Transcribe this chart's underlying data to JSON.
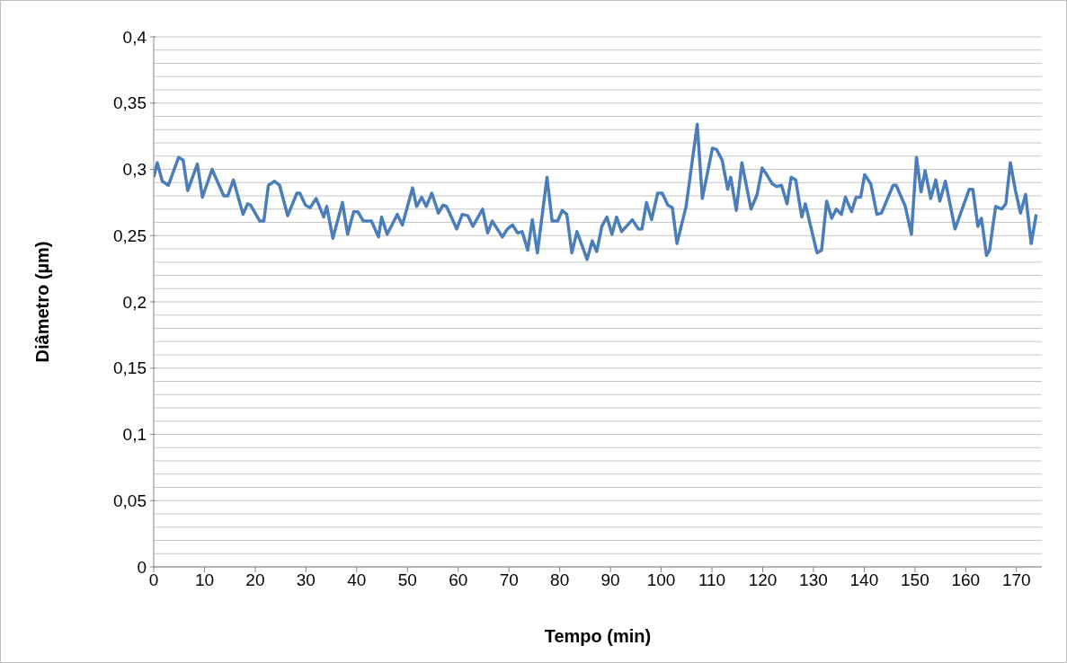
{
  "chart_data": {
    "type": "line",
    "xlabel": "Tempo (min)",
    "ylabel": "Diâmetro (µm)",
    "xlim": [
      0,
      175
    ],
    "xticks": [
      0,
      10,
      20,
      30,
      40,
      50,
      60,
      70,
      80,
      90,
      100,
      110,
      120,
      130,
      140,
      150,
      160,
      170
    ],
    "ylim": [
      0,
      0.4
    ],
    "yticks": [
      {
        "value": 0,
        "label": "0"
      },
      {
        "value": 0.01,
        "label": null
      },
      {
        "value": 0.02,
        "label": null
      },
      {
        "value": 0.03,
        "label": null
      },
      {
        "value": 0.04,
        "label": null
      },
      {
        "value": 0.05,
        "label": "0,05"
      },
      {
        "value": 0.06,
        "label": null
      },
      {
        "value": 0.07,
        "label": null
      },
      {
        "value": 0.08,
        "label": null
      },
      {
        "value": 0.09,
        "label": null
      },
      {
        "value": 0.1,
        "label": "0,1"
      },
      {
        "value": 0.11,
        "label": null
      },
      {
        "value": 0.12,
        "label": null
      },
      {
        "value": 0.13,
        "label": null
      },
      {
        "value": 0.14,
        "label": null
      },
      {
        "value": 0.15,
        "label": "0,15"
      },
      {
        "value": 0.16,
        "label": null
      },
      {
        "value": 0.17,
        "label": null
      },
      {
        "value": 0.18,
        "label": null
      },
      {
        "value": 0.19,
        "label": null
      },
      {
        "value": 0.2,
        "label": "0,2"
      },
      {
        "value": 0.21,
        "label": null
      },
      {
        "value": 0.22,
        "label": null
      },
      {
        "value": 0.23,
        "label": null
      },
      {
        "value": 0.24,
        "label": null
      },
      {
        "value": 0.25,
        "label": "0,25"
      },
      {
        "value": 0.26,
        "label": null
      },
      {
        "value": 0.27,
        "label": null
      },
      {
        "value": 0.28,
        "label": null
      },
      {
        "value": 0.29,
        "label": null
      },
      {
        "value": 0.3,
        "label": "0,3"
      },
      {
        "value": 0.31,
        "label": null
      },
      {
        "value": 0.32,
        "label": null
      },
      {
        "value": 0.33,
        "label": null
      },
      {
        "value": 0.34,
        "label": null
      },
      {
        "value": 0.35,
        "label": "0,35"
      },
      {
        "value": 0.36,
        "label": null
      },
      {
        "value": 0.37,
        "label": null
      },
      {
        "value": 0.38,
        "label": null
      },
      {
        "value": 0.39,
        "label": null
      },
      {
        "value": 0.4,
        "label": "0,4"
      }
    ],
    "grid": "y",
    "legend": false,
    "marker": "none",
    "line_style": "solid",
    "series": [
      {
        "color": "#4a7ebb",
        "x": [
          0,
          0.7,
          1.7,
          2.9,
          4.9,
          5.8,
          6.7,
          8.6,
          9.6,
          11.5,
          13.8,
          14.6,
          15.7,
          17.6,
          18.5,
          19.1,
          20.9,
          21.7,
          22.6,
          23.8,
          24.8,
          26.4,
          28.2,
          28.8,
          29.9,
          30.8,
          32.0,
          33.5,
          34.1,
          35.3,
          37.2,
          38.2,
          39.4,
          40.2,
          41.3,
          42.9,
          44.3,
          44.9,
          46.0,
          48.0,
          49.0,
          51.0,
          51.8,
          52.8,
          53.7,
          54.8,
          56.1,
          57.0,
          57.7,
          59.7,
          60.8,
          61.9,
          62.9,
          64.8,
          65.8,
          66.7,
          68.7,
          69.7,
          70.7,
          71.7,
          72.6,
          73.7,
          74.6,
          75.6,
          77.5,
          78.5,
          79.6,
          80.5,
          81.4,
          82.4,
          83.4,
          85.4,
          86.4,
          87.3,
          88.3,
          89.3,
          90.3,
          91.2,
          92.2,
          94.3,
          95.5,
          96.2,
          97.1,
          98.1,
          99.3,
          100.2,
          101.3,
          102.2,
          103.1,
          104.9,
          107.1,
          108.1,
          110.1,
          110.9,
          112.0,
          113.1,
          113.7,
          114.8,
          115.9,
          117.7,
          118.9,
          119.9,
          120.8,
          121.9,
          122.8,
          123.7,
          124.8,
          125.6,
          126.5,
          127.7,
          128.4,
          130.7,
          131.6,
          132.6,
          133.6,
          134.5,
          135.5,
          136.3,
          137.5,
          138.4,
          139.3,
          140.1,
          141.3,
          142.5,
          143.4,
          145.7,
          146.3,
          148.1,
          149.3,
          150.3,
          151.2,
          152.0,
          153.1,
          154.1,
          154.9,
          156.0,
          157.9,
          160.7,
          161.4,
          162.4,
          163.1,
          164.1,
          164.7,
          165.9,
          167.1,
          167.9,
          168.8,
          169.8,
          170.8,
          171.8,
          172.9,
          173.9
        ],
        "values": [
          0.294,
          0.305,
          0.291,
          0.288,
          0.309,
          0.307,
          0.284,
          0.304,
          0.279,
          0.3,
          0.28,
          0.28,
          0.292,
          0.266,
          0.274,
          0.273,
          0.261,
          0.261,
          0.288,
          0.291,
          0.288,
          0.265,
          0.282,
          0.282,
          0.273,
          0.271,
          0.278,
          0.264,
          0.272,
          0.248,
          0.275,
          0.251,
          0.268,
          0.268,
          0.261,
          0.261,
          0.249,
          0.264,
          0.251,
          0.266,
          0.258,
          0.286,
          0.272,
          0.279,
          0.272,
          0.282,
          0.267,
          0.273,
          0.272,
          0.255,
          0.266,
          0.265,
          0.257,
          0.27,
          0.252,
          0.261,
          0.249,
          0.255,
          0.258,
          0.252,
          0.253,
          0.239,
          0.262,
          0.237,
          0.294,
          0.261,
          0.261,
          0.269,
          0.266,
          0.237,
          0.253,
          0.232,
          0.246,
          0.238,
          0.257,
          0.264,
          0.251,
          0.264,
          0.253,
          0.262,
          0.255,
          0.255,
          0.275,
          0.262,
          0.282,
          0.282,
          0.273,
          0.271,
          0.244,
          0.272,
          0.334,
          0.278,
          0.316,
          0.315,
          0.307,
          0.285,
          0.294,
          0.269,
          0.305,
          0.27,
          0.281,
          0.301,
          0.296,
          0.289,
          0.287,
          0.288,
          0.274,
          0.294,
          0.292,
          0.264,
          0.274,
          0.237,
          0.239,
          0.276,
          0.263,
          0.27,
          0.266,
          0.279,
          0.268,
          0.279,
          0.279,
          0.296,
          0.289,
          0.266,
          0.267,
          0.288,
          0.288,
          0.272,
          0.251,
          0.309,
          0.283,
          0.299,
          0.278,
          0.292,
          0.276,
          0.291,
          0.255,
          0.285,
          0.285,
          0.257,
          0.263,
          0.235,
          0.239,
          0.272,
          0.27,
          0.274,
          0.305,
          0.284,
          0.267,
          0.281,
          0.244,
          0.266
        ]
      }
    ]
  }
}
